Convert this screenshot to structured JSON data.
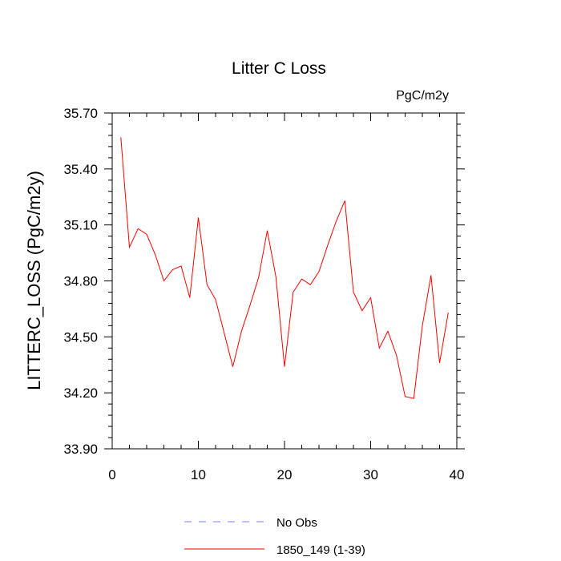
{
  "chart_data": {
    "type": "line",
    "title": "Litter C Loss",
    "units": "PgC/m2y",
    "ylabel": "LITTERC_LOSS  (PgC/m2y)",
    "xlabel": "",
    "xlim": [
      0,
      40
    ],
    "ylim": [
      33.9,
      35.7
    ],
    "xticks": [
      0,
      10,
      20,
      30,
      40
    ],
    "xtick_labels": [
      "0",
      "10",
      "20",
      "30",
      "40"
    ],
    "yticks": [
      33.9,
      34.2,
      34.5,
      34.8,
      35.1,
      35.4,
      35.7
    ],
    "ytick_labels": [
      "33.90",
      "34.20",
      "34.50",
      "34.80",
      "35.10",
      "35.40",
      "35.70"
    ],
    "grid": false,
    "legend_position": "bottom",
    "series": [
      {
        "name": "1850_149 (1-39)",
        "color": "#ff0000",
        "dash": "solid",
        "x": [
          1,
          2,
          3,
          4,
          5,
          6,
          7,
          8,
          9,
          10,
          11,
          12,
          13,
          14,
          15,
          16,
          17,
          18,
          19,
          20,
          21,
          22,
          23,
          24,
          25,
          26,
          27,
          28,
          29,
          30,
          31,
          32,
          33,
          34,
          35,
          36,
          37,
          38,
          39
        ],
        "y": [
          35.57,
          34.98,
          35.08,
          35.05,
          34.94,
          34.8,
          34.86,
          34.88,
          34.71,
          35.14,
          34.78,
          34.7,
          34.52,
          34.34,
          34.53,
          34.67,
          34.82,
          35.07,
          34.82,
          34.34,
          34.74,
          34.81,
          34.78,
          34.85,
          34.99,
          35.12,
          35.23,
          34.74,
          34.64,
          34.71,
          34.44,
          34.53,
          34.4,
          34.18,
          34.17,
          34.56,
          34.83,
          34.36,
          34.63
        ]
      }
    ],
    "legend": [
      {
        "label": "No Obs",
        "color": "#8080ff",
        "dash": "dashed"
      },
      {
        "label": "1850_149 (1-39)",
        "color": "#ff0000",
        "dash": "solid"
      }
    ]
  }
}
